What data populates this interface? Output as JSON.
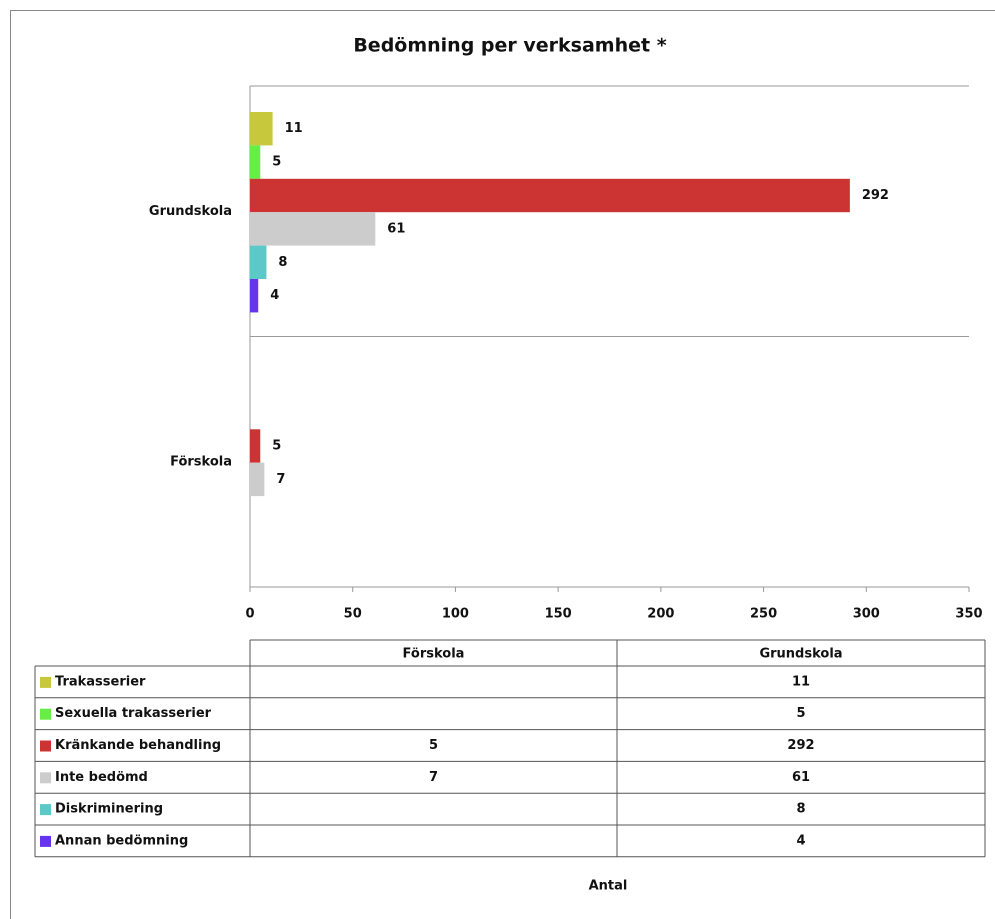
{
  "chart_data": {
    "type": "bar",
    "orientation": "horizontal",
    "title": "Bedömning per verksamhet *",
    "x_label": "Antal",
    "categories": [
      "Grundskola",
      "Förskola"
    ],
    "series": [
      {
        "name": "Trakasserier",
        "color": "#c8c83c",
        "values": [
          11,
          null
        ]
      },
      {
        "name": "Sexuella trakasserier",
        "color": "#66ee44",
        "values": [
          5,
          null
        ]
      },
      {
        "name": "Kränkande behandling",
        "color": "#cc3333",
        "values": [
          292,
          5
        ]
      },
      {
        "name": "Inte bedömd",
        "color": "#cccccc",
        "values": [
          61,
          7
        ]
      },
      {
        "name": "Diskriminering",
        "color": "#5cc8c8",
        "values": [
          8,
          null
        ]
      },
      {
        "name": "Annan bedömning",
        "color": "#6633ee",
        "values": [
          4,
          null
        ]
      }
    ],
    "xlim": [
      0,
      350
    ],
    "xticks": [
      0,
      50,
      100,
      150,
      200,
      250,
      300,
      350
    ]
  }
}
